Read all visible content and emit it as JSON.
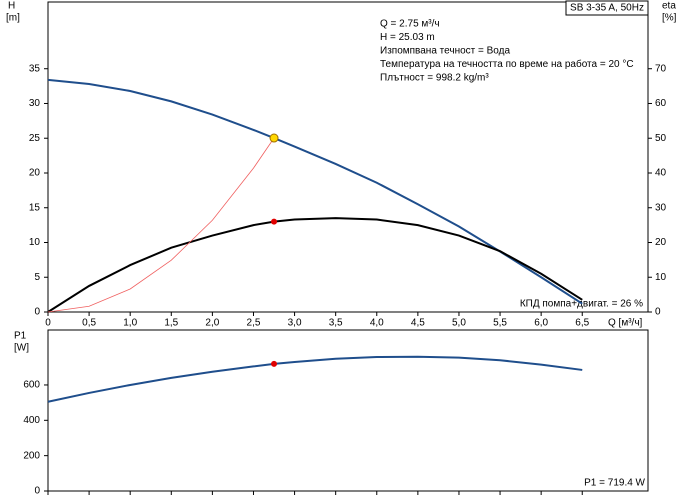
{
  "chart_data": [
    {
      "type": "line",
      "title": "SB 3-35 A, 50Hz",
      "info": [
        "Q = 2.75 м³/ч",
        "H = 25.03 m",
        "Изпомпвана течност = Вода",
        "Температура на течността по време на работа = 20 °C",
        "Плътност = 998.2 kg/m³"
      ],
      "annotation": "КПД помпа+двигат. = 26 %",
      "ylabel": "H",
      "yunit": "[m]",
      "y2label": "eta",
      "y2unit": "[%]",
      "xlabel": "Q [м³/ч]",
      "x": [
        0,
        0.5,
        1,
        1.5,
        2,
        2.5,
        2.75,
        3,
        3.5,
        4,
        4.5,
        5,
        5.5,
        6,
        6.5
      ],
      "xlim": [
        0,
        7.3
      ],
      "xticks": [
        0,
        {
          "value": 0.5,
          "label": "0,5"
        },
        {
          "value": 1,
          "label": "1,0"
        },
        {
          "value": 1.5,
          "label": "1,5"
        },
        {
          "value": 2,
          "label": "2,0"
        },
        {
          "value": 2.5,
          "label": "2,5"
        },
        {
          "value": 3,
          "label": "3,0"
        },
        {
          "value": 3.5,
          "label": "3,5"
        },
        {
          "value": 4,
          "label": "4,0"
        },
        {
          "value": 4.5,
          "label": "4,5"
        },
        {
          "value": 5,
          "label": "5,0"
        },
        {
          "value": 5.5,
          "label": "5,5"
        },
        {
          "value": 6,
          "label": "6,0"
        },
        {
          "value": 6.5,
          "label": "6,5"
        }
      ],
      "ylim": [
        0,
        44.6
      ],
      "yticks": [
        0,
        5,
        10,
        15,
        20,
        25,
        30,
        35
      ],
      "y2lim": [
        0,
        89.2
      ],
      "y2ticks": [
        0,
        10,
        20,
        30,
        40,
        50,
        60,
        70
      ],
      "series": [
        {
          "color": "#1f4e8c",
          "values": [
            33.4,
            32.8,
            31.8,
            30.3,
            28.4,
            26.2,
            25.03,
            23.8,
            21.3,
            18.6,
            15.5,
            12.3,
            8.7,
            5.0,
            1.2
          ]
        },
        {
          "color": "#000000",
          "axis": "y2",
          "values": [
            0,
            7.5,
            13.5,
            18.5,
            22,
            25,
            26,
            26.6,
            27,
            26.6,
            25,
            22,
            17.5,
            11,
            3.5
          ]
        },
        {
          "color": "#f06060",
          "values": [
            0,
            0.83,
            3.31,
            7.45,
            13.2,
            20.7,
            25.03,
            null,
            null,
            null,
            null,
            null,
            null,
            null,
            null
          ]
        }
      ],
      "markers": [
        {
          "x": 2.75,
          "y": 25.03,
          "color": "#ffd700"
        },
        {
          "x": 2.75,
          "y": 26,
          "axis": "y2",
          "color": "#e00000"
        }
      ]
    },
    {
      "type": "line",
      "ylabel": "P1",
      "yunit": "[W]",
      "annotation": "P1 = 719.4 W",
      "x": [
        0,
        0.5,
        1,
        1.5,
        2,
        2.5,
        2.75,
        3,
        3.5,
        4,
        4.5,
        5,
        5.5,
        6,
        6.5
      ],
      "xlim": [
        0,
        7.3
      ],
      "xticks": [
        0,
        0.5,
        1,
        1.5,
        2,
        2.5,
        3,
        3.5,
        4,
        4.5,
        5,
        5.5,
        6,
        6.5
      ],
      "ylim": [
        0,
        911
      ],
      "yticks": [
        0,
        200,
        400,
        600
      ],
      "series": [
        {
          "color": "#1f4e8c",
          "values": [
            505,
            555,
            600,
            640,
            675,
            705,
            719.4,
            730,
            748,
            758,
            760,
            755,
            740,
            715,
            685
          ]
        }
      ],
      "markers": [
        {
          "x": 2.75,
          "y": 719.4,
          "color": "#e00000"
        }
      ]
    }
  ]
}
